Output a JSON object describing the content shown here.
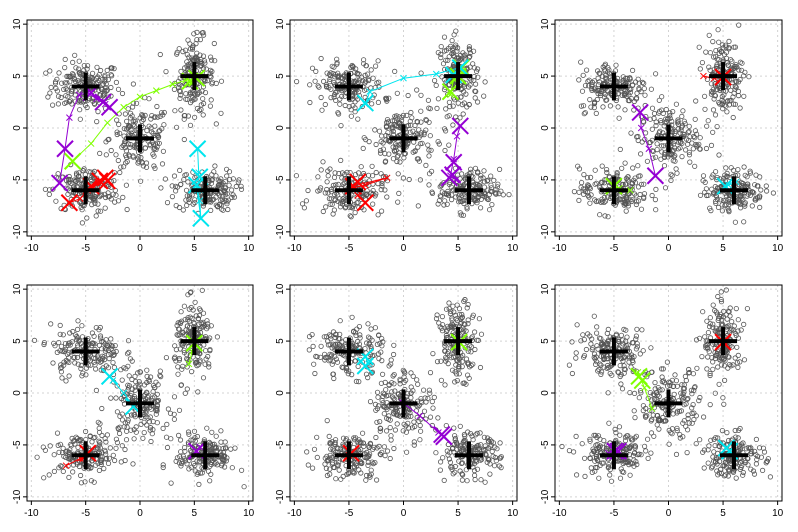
{
  "chart_data": [
    {
      "type": "scatter",
      "panel": 1,
      "xlim": [
        -10,
        10
      ],
      "ylim": [
        -10,
        10
      ],
      "xticks": [
        "-10",
        "-5",
        "0",
        "5",
        "10"
      ],
      "yticks": [
        "-10",
        "-5",
        "0",
        "5",
        "10"
      ],
      "grid": true,
      "cluster_centers": [
        [
          -5,
          4
        ],
        [
          5,
          5
        ],
        [
          0,
          -1
        ],
        [
          -5,
          -6
        ],
        [
          6,
          -6
        ]
      ],
      "paths": [
        {
          "color": "#ff0000",
          "points": [
            [
              -6.5,
              -7.2
            ],
            [
              -5.5,
              -6.8
            ],
            [
              -4.8,
              -6
            ],
            [
              -3.9,
              -5.2
            ],
            [
              -3.2,
              -4.9
            ],
            [
              -3,
              -5.1
            ]
          ]
        },
        {
          "color": "#7fff00",
          "points": [
            [
              -6.2,
              -3.2
            ],
            [
              -4.5,
              -1.5
            ],
            [
              -3,
              0.5
            ],
            [
              -1.5,
              2
            ],
            [
              0,
              3
            ],
            [
              1.5,
              3.6
            ],
            [
              3,
              4.2
            ],
            [
              4.2,
              4.6
            ],
            [
              5.2,
              4.7
            ]
          ]
        },
        {
          "color": "#00e5ee",
          "points": [
            [
              5.3,
              -2
            ],
            [
              5.4,
              -4.3
            ],
            [
              5.3,
              -6
            ],
            [
              5.5,
              -7
            ],
            [
              5.6,
              -8.7
            ],
            [
              5.2,
              -5.5
            ]
          ]
        },
        {
          "color": "#9400d3",
          "points": [
            [
              -7.4,
              -5.3
            ],
            [
              -6.9,
              -2
            ],
            [
              -6.5,
              1
            ],
            [
              -5.6,
              3.2
            ],
            [
              -4.8,
              3.4
            ],
            [
              -4,
              2.8
            ],
            [
              -3.2,
              2.3
            ],
            [
              -2.8,
              2
            ]
          ]
        }
      ],
      "markers": [
        {
          "color": "#ff0000",
          "points": [
            [
              -6.5,
              -7.2
            ],
            [
              -4.5,
              -5.6
            ],
            [
              -3.7,
              -5.1
            ],
            [
              -3.2,
              -4.8
            ],
            [
              -3,
              -5.1
            ]
          ]
        },
        {
          "color": "#7fff00",
          "points": [
            [
              -6.2,
              -3.2
            ],
            [
              4.6,
              4.5
            ],
            [
              5.2,
              4.8
            ]
          ]
        },
        {
          "color": "#00e5ee",
          "points": [
            [
              5.3,
              -2
            ],
            [
              5.5,
              -4.7
            ],
            [
              5.6,
              -8.7
            ],
            [
              5.2,
              -5.5
            ]
          ]
        },
        {
          "color": "#9400d3",
          "points": [
            [
              -7.4,
              -5.3
            ],
            [
              -6.9,
              -2
            ],
            [
              -4.5,
              3.4
            ],
            [
              -3.4,
              2.5
            ],
            [
              -2.8,
              2
            ]
          ]
        }
      ]
    },
    {
      "type": "scatter",
      "panel": 2,
      "xlim": [
        -10,
        10
      ],
      "ylim": [
        -10,
        10
      ],
      "xticks": [
        "-10",
        "-5",
        "0",
        "5",
        "10"
      ],
      "yticks": [
        "-10",
        "-5",
        "0",
        "5",
        "10"
      ],
      "grid": true,
      "cluster_centers": [
        [
          -5,
          4
        ],
        [
          5,
          5
        ],
        [
          0,
          -1
        ],
        [
          -5,
          -6
        ],
        [
          6,
          -6
        ]
      ],
      "paths": [
        {
          "color": "#ff0000",
          "points": [
            [
              -3.5,
              -7.2
            ],
            [
              -4.2,
              -6.5
            ],
            [
              -4.8,
              -5.8
            ],
            [
              -3.5,
              -5.5
            ],
            [
              -1.5,
              -4.8
            ],
            [
              -4.7,
              -5.6
            ]
          ]
        },
        {
          "color": "#7fff00",
          "points": [
            [
              4.3,
              3.2
            ],
            [
              4.6,
              4.7
            ],
            [
              5.2,
              5.7
            ],
            [
              5.5,
              5.3
            ]
          ]
        },
        {
          "color": "#00e5ee",
          "points": [
            [
              -3.5,
              2.3
            ],
            [
              -3.1,
              3.5
            ],
            [
              0,
              4.8
            ],
            [
              3,
              5.2
            ],
            [
              5.1,
              5.8
            ],
            [
              4.5,
              5.1
            ]
          ]
        },
        {
          "color": "#9400d3",
          "points": [
            [
              5.2,
              0.2
            ],
            [
              4.9,
              -0.8
            ],
            [
              4.6,
              -3
            ],
            [
              4.3,
              -4.6
            ],
            [
              4.8,
              -5
            ]
          ]
        }
      ],
      "markers": [
        {
          "color": "#ff0000",
          "points": [
            [
              -3.5,
              -7.2
            ],
            [
              -4.6,
              -5.6
            ],
            [
              -4.2,
              -5.2
            ]
          ]
        },
        {
          "color": "#7fff00",
          "points": [
            [
              4.3,
              3.5
            ],
            [
              5,
              5
            ],
            [
              5.3,
              5.8
            ]
          ]
        },
        {
          "color": "#00e5ee",
          "points": [
            [
              -3.5,
              2.4
            ],
            [
              4.6,
              5.1
            ],
            [
              5.2,
              5.8
            ]
          ]
        },
        {
          "color": "#9400d3",
          "points": [
            [
              5.2,
              0.2
            ],
            [
              4.6,
              -3.3
            ],
            [
              4.5,
              -4.5
            ],
            [
              4.2,
              -4.8
            ]
          ]
        }
      ]
    },
    {
      "type": "scatter",
      "panel": 3,
      "xlim": [
        -10,
        10
      ],
      "ylim": [
        -10,
        10
      ],
      "xticks": [
        "-10",
        "-5",
        "0",
        "5",
        "10"
      ],
      "yticks": [
        "-10",
        "-5",
        "0",
        "5",
        "10"
      ],
      "grid": true,
      "cluster_centers": [
        [
          -5,
          4
        ],
        [
          5,
          5
        ],
        [
          0,
          -1
        ],
        [
          -5,
          -6
        ],
        [
          6,
          -6
        ]
      ],
      "paths": [
        {
          "color": "#ff0000",
          "points": [
            [
              3.2,
              5
            ],
            [
              4.2,
              4.8
            ],
            [
              5,
              4.9
            ]
          ]
        },
        {
          "color": "#7fff00",
          "points": [
            [
              -3.5,
              -6
            ],
            [
              -4.5,
              -5.8
            ],
            [
              -5,
              -5.6
            ]
          ]
        },
        {
          "color": "#00e5ee",
          "points": [
            [
              6.2,
              -5.2
            ],
            [
              5.5,
              -5.5
            ],
            [
              5.2,
              -5.6
            ]
          ]
        },
        {
          "color": "#9400d3",
          "points": [
            [
              -1.2,
              -4.6
            ],
            [
              -1.8,
              -2
            ],
            [
              -2.5,
              0
            ],
            [
              -2.6,
              1.5
            ]
          ]
        }
      ],
      "markers": [
        {
          "color": "#ff0000",
          "points": [
            [
              5,
              4.9
            ]
          ]
        },
        {
          "color": "#7fff00",
          "points": [
            [
              -5,
              -5.6
            ]
          ]
        },
        {
          "color": "#00e5ee",
          "points": [
            [
              5.2,
              -5.6
            ]
          ]
        },
        {
          "color": "#9400d3",
          "points": [
            [
              -1.2,
              -4.6
            ],
            [
              -2.6,
              1.5
            ]
          ]
        }
      ]
    },
    {
      "type": "scatter",
      "panel": 4,
      "xlim": [
        -10,
        10
      ],
      "ylim": [
        -10,
        10
      ],
      "xticks": [
        "-10",
        "-5",
        "0",
        "5",
        "10"
      ],
      "yticks": [
        "-10",
        "-5",
        "0",
        "5",
        "10"
      ],
      "grid": true,
      "cluster_centers": [
        [
          -5,
          4
        ],
        [
          5,
          5
        ],
        [
          0,
          -1
        ],
        [
          -5,
          -6
        ],
        [
          6,
          -6
        ]
      ],
      "paths": [
        {
          "color": "#ff0000",
          "points": [
            [
              -6.8,
              -7
            ],
            [
              -5.5,
              -6.3
            ],
            [
              -4.8,
              -5.8
            ]
          ]
        },
        {
          "color": "#7fff00",
          "points": [
            [
              4.5,
              2.8
            ],
            [
              4.8,
              4
            ],
            [
              5,
              4.8
            ]
          ]
        },
        {
          "color": "#00e5ee",
          "points": [
            [
              -0.6,
              -1.3
            ],
            [
              -1.5,
              0
            ],
            [
              -2.5,
              1.2
            ],
            [
              -2.8,
              1.6
            ]
          ]
        },
        {
          "color": "#9400d3",
          "points": [
            [
              5.5,
              -5.2
            ],
            [
              5.2,
              -5.6
            ]
          ]
        }
      ],
      "markers": [
        {
          "color": "#ff0000",
          "points": [
            [
              -4.8,
              -5.8
            ]
          ]
        },
        {
          "color": "#7fff00",
          "points": [
            [
              5,
              4.8
            ]
          ]
        },
        {
          "color": "#00e5ee",
          "points": [
            [
              -0.6,
              -1.3
            ],
            [
              -2.8,
              1.6
            ]
          ]
        },
        {
          "color": "#9400d3",
          "points": [
            [
              5.2,
              -5.6
            ]
          ]
        }
      ]
    },
    {
      "type": "scatter",
      "panel": 5,
      "xlim": [
        -10,
        10
      ],
      "ylim": [
        -10,
        10
      ],
      "xticks": [
        "-10",
        "-5",
        "0",
        "5",
        "10"
      ],
      "yticks": [
        "-10",
        "-5",
        "0",
        "5",
        "10"
      ],
      "grid": true,
      "cluster_centers": [
        [
          -5,
          4
        ],
        [
          5,
          5
        ],
        [
          0,
          -1
        ],
        [
          -5,
          -6
        ],
        [
          6,
          -6
        ]
      ],
      "paths": [
        {
          "color": "#ff0000",
          "points": [
            [
              -5,
              -6
            ],
            [
              -4.8,
              -5.8
            ]
          ]
        },
        {
          "color": "#7fff00",
          "points": [
            [
              5,
              4.6
            ],
            [
              5.1,
              4.9
            ]
          ]
        },
        {
          "color": "#00e5ee",
          "points": [
            [
              -3.5,
              3.5
            ],
            [
              -3.2,
              2.8
            ],
            [
              -3.5,
              2.6
            ]
          ]
        },
        {
          "color": "#9400d3",
          "points": [
            [
              -0.1,
              -0.9
            ],
            [
              1.5,
              -2.2
            ],
            [
              3.2,
              -3.8
            ],
            [
              3.7,
              -4.2
            ]
          ]
        }
      ],
      "markers": [
        {
          "color": "#ff0000",
          "points": [
            [
              -4.8,
              -5.8
            ]
          ]
        },
        {
          "color": "#7fff00",
          "points": [
            [
              5.1,
              4.9
            ]
          ]
        },
        {
          "color": "#00e5ee",
          "points": [
            [
              -3.5,
              3.5
            ],
            [
              -3.5,
              2.6
            ]
          ]
        },
        {
          "color": "#9400d3",
          "points": [
            [
              3.5,
              -4
            ],
            [
              3.7,
              -4.2
            ]
          ]
        }
      ]
    },
    {
      "type": "scatter",
      "panel": 6,
      "xlim": [
        -10,
        10
      ],
      "ylim": [
        -10,
        10
      ],
      "xticks": [
        "-10",
        "-5",
        "0",
        "5",
        "10"
      ],
      "yticks": [
        "-10",
        "-5",
        "0",
        "5",
        "10"
      ],
      "grid": true,
      "cluster_centers": [
        [
          -5,
          4
        ],
        [
          5,
          5
        ],
        [
          0,
          -1
        ],
        [
          -5,
          -6
        ],
        [
          6,
          -6
        ]
      ],
      "paths": [
        {
          "color": "#ff0000",
          "points": [
            [
              5,
              4.9
            ],
            [
              5.1,
              5
            ]
          ]
        },
        {
          "color": "#7fff00",
          "points": [
            [
              -2.8,
              2
            ],
            [
              -2.2,
              0.5
            ],
            [
              -1.5,
              -1.5
            ]
          ]
        },
        {
          "color": "#00e5ee",
          "points": [
            [
              5.3,
              -5.3
            ],
            [
              5.6,
              -5.6
            ]
          ]
        },
        {
          "color": "#9400d3",
          "points": [
            [
              -5.5,
              -5.8
            ],
            [
              -4.9,
              -5.5
            ],
            [
              -4.6,
              -5.6
            ]
          ]
        }
      ],
      "markers": [
        {
          "color": "#ff0000",
          "points": [
            [
              5,
              4.9
            ]
          ]
        },
        {
          "color": "#7fff00",
          "points": [
            [
              -2.7,
              1.6
            ],
            [
              -2.4,
              1.2
            ]
          ]
        },
        {
          "color": "#00e5ee",
          "points": [
            [
              5.3,
              -5.3
            ],
            [
              5.6,
              -5.6
            ]
          ]
        },
        {
          "color": "#9400d3",
          "points": [
            [
              -4.9,
              -5.6
            ],
            [
              -4.6,
              -5.6
            ]
          ]
        }
      ]
    }
  ]
}
